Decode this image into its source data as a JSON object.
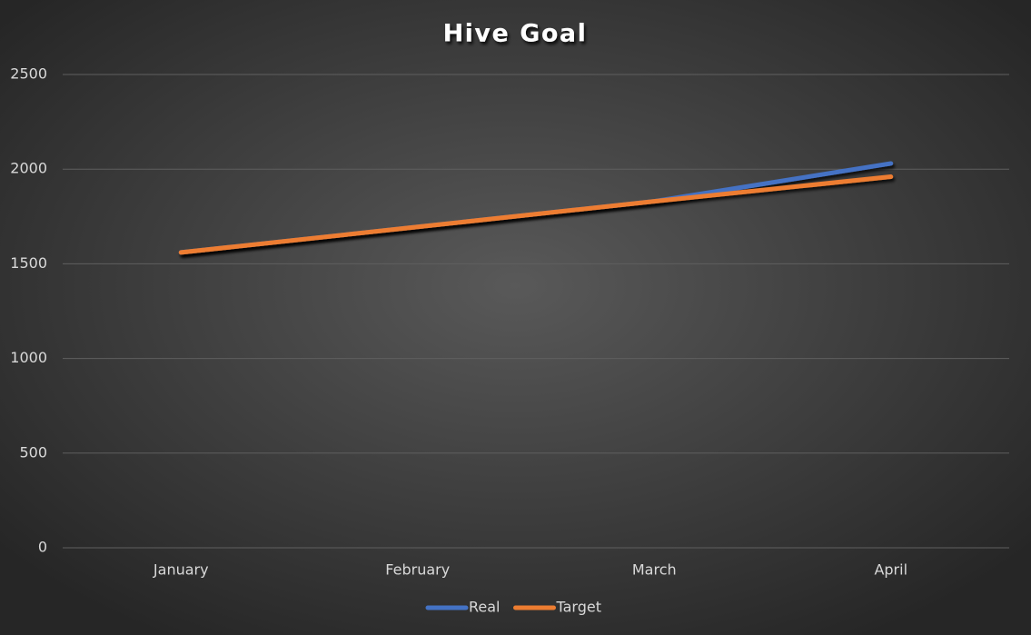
{
  "chart_data": {
    "type": "line",
    "title": "Hive Goal",
    "categories": [
      "January",
      "February",
      "March",
      "April"
    ],
    "series": [
      {
        "name": "Real",
        "color": "#4472c4",
        "values": [
          1560,
          1695,
          1830,
          2030
        ]
      },
      {
        "name": "Target",
        "color": "#ed7d31",
        "values": [
          1560,
          1695,
          1830,
          1960
        ]
      }
    ],
    "ylim": [
      0,
      2500
    ],
    "yticks": [
      0,
      500,
      1000,
      1500,
      2000,
      2500
    ],
    "grid": true,
    "legend": "bottom"
  }
}
